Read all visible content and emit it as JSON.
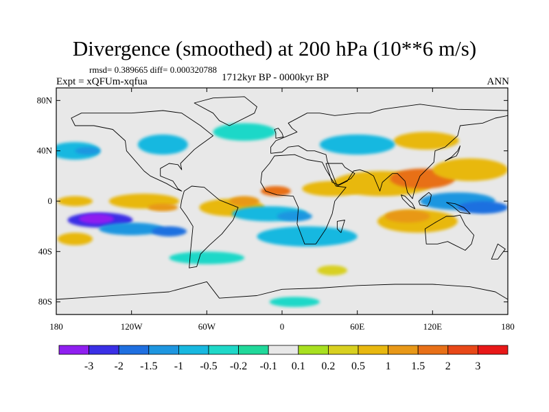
{
  "header": {
    "title": "Divergence (smoothed) at 200 hPa (10**6 m/s)",
    "stats": "rmsd= 0.389665 diff= 0.000320788",
    "period": "1712kyr BP - 0000kyr BP",
    "experiment": "Expt = xQFUm-xqfua",
    "season": "ANN"
  },
  "chart_data": {
    "type": "heatmap",
    "title": "Divergence (smoothed) at 200 hPa (10**6 m/s)",
    "projection": "cylindrical-equidistant",
    "x": {
      "range": [
        -180,
        180
      ],
      "ticks": [
        -180,
        -120,
        -60,
        0,
        60,
        120,
        180
      ],
      "tick_labels": [
        "180",
        "120W",
        "60W",
        "0",
        "60E",
        "120E",
        "180"
      ]
    },
    "y": {
      "range": [
        -90,
        90
      ],
      "ticks": [
        80,
        40,
        0,
        -40,
        -80
      ],
      "tick_labels": [
        "80N",
        "40N",
        "0",
        "40S",
        "80S"
      ]
    },
    "colorbar": {
      "labels": [
        "-3",
        "-2",
        "-1.5",
        "-1",
        "-0.5",
        "-0.2",
        "-0.1",
        "0.1",
        "0.2",
        "0.5",
        "1",
        "1.5",
        "2",
        "3"
      ],
      "levels": [
        -3,
        -2,
        -1.5,
        -1,
        -0.5,
        -0.2,
        -0.1,
        0.1,
        0.2,
        0.5,
        1,
        1.5,
        2,
        3
      ],
      "colors": [
        "#8f1ff0",
        "#3a2fe6",
        "#1f6fe0",
        "#1e96e0",
        "#18b8e0",
        "#1fd8c8",
        "#20d89a",
        "#e8e8e8",
        "#a8e020",
        "#d8d020",
        "#e8b810",
        "#e89818",
        "#e87018",
        "#e84818",
        "#e81818"
      ]
    },
    "background_color": "#e8e8e8",
    "anomaly_regions": [
      {
        "lon": -145,
        "lat": -15,
        "rx": 26,
        "ry": 6,
        "value": -2.5
      },
      {
        "lon": -148,
        "lat": -14,
        "rx": 14,
        "ry": 4,
        "value": -3.2
      },
      {
        "lon": -120,
        "lat": -22,
        "rx": 26,
        "ry": 5,
        "value": -1.2
      },
      {
        "lon": -90,
        "lat": -24,
        "rx": 14,
        "ry": 4,
        "value": -1.6
      },
      {
        "lon": -165,
        "lat": 0,
        "rx": 14,
        "ry": 4,
        "value": 0.6
      },
      {
        "lon": -110,
        "lat": 0,
        "rx": 28,
        "ry": 6,
        "value": 0.8
      },
      {
        "lon": -95,
        "lat": -5,
        "rx": 12,
        "ry": 3,
        "value": 1.3
      },
      {
        "lon": -40,
        "lat": -5,
        "rx": 26,
        "ry": 7,
        "value": 0.8
      },
      {
        "lon": -30,
        "lat": 0,
        "rx": 12,
        "ry": 4,
        "value": 1.3
      },
      {
        "lon": -5,
        "lat": 8,
        "rx": 12,
        "ry": 4,
        "value": 1.6
      },
      {
        "lon": 40,
        "lat": 10,
        "rx": 24,
        "ry": 6,
        "value": 0.7
      },
      {
        "lon": 80,
        "lat": 14,
        "rx": 40,
        "ry": 10,
        "value": 1.0
      },
      {
        "lon": 112,
        "lat": 18,
        "rx": 26,
        "ry": 8,
        "value": 1.6
      },
      {
        "lon": 150,
        "lat": 25,
        "rx": 30,
        "ry": 9,
        "value": 0.8
      },
      {
        "lon": 115,
        "lat": 48,
        "rx": 26,
        "ry": 7,
        "value": 0.6
      },
      {
        "lon": 108,
        "lat": -16,
        "rx": 32,
        "ry": 9,
        "value": 0.8
      },
      {
        "lon": 100,
        "lat": -12,
        "rx": 18,
        "ry": 5,
        "value": 1.5
      },
      {
        "lon": -165,
        "lat": -30,
        "rx": 14,
        "ry": 5,
        "value": 0.6
      },
      {
        "lon": -165,
        "lat": 40,
        "rx": 20,
        "ry": 7,
        "value": -0.6
      },
      {
        "lon": -155,
        "lat": 40,
        "rx": 10,
        "ry": 3,
        "value": -1.2
      },
      {
        "lon": -95,
        "lat": 45,
        "rx": 20,
        "ry": 8,
        "value": -0.7
      },
      {
        "lon": -10,
        "lat": -10,
        "rx": 30,
        "ry": 6,
        "value": -0.7
      },
      {
        "lon": 10,
        "lat": -12,
        "rx": 14,
        "ry": 4,
        "value": -1.3
      },
      {
        "lon": 20,
        "lat": -28,
        "rx": 40,
        "ry": 8,
        "value": -0.5
      },
      {
        "lon": 60,
        "lat": 45,
        "rx": 30,
        "ry": 8,
        "value": -0.5
      },
      {
        "lon": -30,
        "lat": 55,
        "rx": 25,
        "ry": 7,
        "value": -0.4
      },
      {
        "lon": 140,
        "lat": 0,
        "rx": 30,
        "ry": 7,
        "value": -1.0
      },
      {
        "lon": 160,
        "lat": -5,
        "rx": 20,
        "ry": 5,
        "value": -1.8
      },
      {
        "lon": -60,
        "lat": -45,
        "rx": 30,
        "ry": 5,
        "value": -0.4
      },
      {
        "lon": 40,
        "lat": -55,
        "rx": 12,
        "ry": 4,
        "value": 0.3
      },
      {
        "lon": 10,
        "lat": -80,
        "rx": 20,
        "ry": 4,
        "value": -0.3
      }
    ],
    "land_outlines": [
      {
        "name": "north-america",
        "points": [
          [
            -168,
            66
          ],
          [
            -160,
            70
          ],
          [
            -140,
            70
          ],
          [
            -120,
            70
          ],
          [
            -95,
            72
          ],
          [
            -80,
            70
          ],
          [
            -65,
            60
          ],
          [
            -55,
            52
          ],
          [
            -66,
            44
          ],
          [
            -70,
            41
          ],
          [
            -76,
            35
          ],
          [
            -81,
            30
          ],
          [
            -80,
            25
          ],
          [
            -83,
            29
          ],
          [
            -90,
            30
          ],
          [
            -97,
            26
          ],
          [
            -97,
            20
          ],
          [
            -92,
            18
          ],
          [
            -87,
            16
          ],
          [
            -83,
            10
          ],
          [
            -80,
            8
          ],
          [
            -85,
            10
          ],
          [
            -92,
            14
          ],
          [
            -105,
            20
          ],
          [
            -110,
            24
          ],
          [
            -117,
            32
          ],
          [
            -124,
            40
          ],
          [
            -125,
            48
          ],
          [
            -135,
            57
          ],
          [
            -150,
            60
          ],
          [
            -165,
            60
          ],
          [
            -168,
            66
          ]
        ]
      },
      {
        "name": "south-america",
        "points": [
          [
            -78,
            8
          ],
          [
            -72,
            12
          ],
          [
            -62,
            11
          ],
          [
            -50,
            1
          ],
          [
            -35,
            -5
          ],
          [
            -39,
            -15
          ],
          [
            -48,
            -26
          ],
          [
            -58,
            -35
          ],
          [
            -65,
            -42
          ],
          [
            -68,
            -52
          ],
          [
            -74,
            -53
          ],
          [
            -73,
            -40
          ],
          [
            -71,
            -20
          ],
          [
            -76,
            -12
          ],
          [
            -81,
            -5
          ],
          [
            -80,
            1
          ],
          [
            -78,
            8
          ]
        ]
      },
      {
        "name": "greenland",
        "points": [
          [
            -55,
            82
          ],
          [
            -30,
            83
          ],
          [
            -20,
            75
          ],
          [
            -22,
            70
          ],
          [
            -42,
            60
          ],
          [
            -50,
            64
          ],
          [
            -55,
            70
          ],
          [
            -70,
            78
          ],
          [
            -55,
            82
          ]
        ]
      },
      {
        "name": "africa",
        "points": [
          [
            -17,
            15
          ],
          [
            -16,
            23
          ],
          [
            -10,
            30
          ],
          [
            -6,
            36
          ],
          [
            10,
            37
          ],
          [
            20,
            33
          ],
          [
            32,
            31
          ],
          [
            35,
            25
          ],
          [
            43,
            12
          ],
          [
            51,
            11
          ],
          [
            42,
            0
          ],
          [
            40,
            -10
          ],
          [
            35,
            -22
          ],
          [
            27,
            -34
          ],
          [
            18,
            -34
          ],
          [
            12,
            -18
          ],
          [
            13,
            -5
          ],
          [
            9,
            4
          ],
          [
            -4,
            5
          ],
          [
            -13,
            8
          ],
          [
            -17,
            15
          ]
        ]
      },
      {
        "name": "eurasia",
        "points": [
          [
            -9,
            43
          ],
          [
            -9,
            38
          ],
          [
            0,
            39
          ],
          [
            5,
            43
          ],
          [
            13,
            44
          ],
          [
            20,
            40
          ],
          [
            26,
            40
          ],
          [
            35,
            37
          ],
          [
            36,
            32
          ],
          [
            44,
            12
          ],
          [
            52,
            16
          ],
          [
            57,
            24
          ],
          [
            62,
            25
          ],
          [
            68,
            23
          ],
          [
            73,
            20
          ],
          [
            78,
            8
          ],
          [
            80,
            15
          ],
          [
            88,
            22
          ],
          [
            92,
            22
          ],
          [
            98,
            16
          ],
          [
            100,
            7
          ],
          [
            104,
            2
          ],
          [
            106,
            10
          ],
          [
            110,
            20
          ],
          [
            121,
            31
          ],
          [
            122,
            40
          ],
          [
            130,
            43
          ],
          [
            140,
            52
          ],
          [
            142,
            60
          ],
          [
            160,
            62
          ],
          [
            170,
            66
          ],
          [
            180,
            68
          ],
          [
            180,
            72
          ],
          [
            140,
            73
          ],
          [
            110,
            77
          ],
          [
            80,
            73
          ],
          [
            70,
            70
          ],
          [
            60,
            70
          ],
          [
            42,
            68
          ],
          [
            30,
            70
          ],
          [
            20,
            70
          ],
          [
            5,
            62
          ],
          [
            8,
            58
          ],
          [
            12,
            55
          ],
          [
            0,
            50
          ],
          [
            -5,
            48
          ],
          [
            -9,
            43
          ]
        ]
      },
      {
        "name": "arabia-notch",
        "points": [
          [
            35,
            30
          ],
          [
            40,
            15
          ],
          [
            45,
            13
          ],
          [
            55,
            18
          ],
          [
            58,
            22
          ],
          [
            50,
            27
          ],
          [
            48,
            30
          ],
          [
            35,
            30
          ]
        ]
      },
      {
        "name": "australia",
        "points": [
          [
            114,
            -22
          ],
          [
            122,
            -17
          ],
          [
            131,
            -12
          ],
          [
            137,
            -12
          ],
          [
            142,
            -11
          ],
          [
            146,
            -19
          ],
          [
            153,
            -27
          ],
          [
            151,
            -34
          ],
          [
            146,
            -39
          ],
          [
            138,
            -35
          ],
          [
            132,
            -32
          ],
          [
            124,
            -34
          ],
          [
            115,
            -34
          ],
          [
            114,
            -22
          ]
        ]
      },
      {
        "name": "borneo",
        "points": [
          [
            109,
            0
          ],
          [
            112,
            3
          ],
          [
            117,
            7
          ],
          [
            119,
            5
          ],
          [
            118,
            0
          ],
          [
            116,
            -4
          ],
          [
            110,
            -3
          ],
          [
            109,
            0
          ]
        ]
      },
      {
        "name": "sumatra",
        "points": [
          [
            95,
            5
          ],
          [
            98,
            4
          ],
          [
            104,
            -2
          ],
          [
            106,
            -6
          ],
          [
            102,
            -4
          ],
          [
            96,
            2
          ],
          [
            95,
            5
          ]
        ]
      },
      {
        "name": "new-guinea",
        "points": [
          [
            131,
            -1
          ],
          [
            138,
            -2
          ],
          [
            145,
            -5
          ],
          [
            150,
            -10
          ],
          [
            142,
            -9
          ],
          [
            136,
            -4
          ],
          [
            131,
            -1
          ]
        ]
      },
      {
        "name": "japan",
        "points": [
          [
            130,
            32
          ],
          [
            134,
            34
          ],
          [
            139,
            36
          ],
          [
            141,
            40
          ],
          [
            142,
            44
          ],
          [
            140,
            40
          ],
          [
            135,
            35
          ],
          [
            130,
            32
          ]
        ]
      },
      {
        "name": "uk",
        "points": [
          [
            -5,
            50
          ],
          [
            1,
            51
          ],
          [
            0,
            54
          ],
          [
            -3,
            58
          ],
          [
            -6,
            57
          ],
          [
            -5,
            54
          ],
          [
            -5,
            50
          ]
        ]
      },
      {
        "name": "madagascar",
        "points": [
          [
            44,
            -16
          ],
          [
            50,
            -15
          ],
          [
            47,
            -25
          ],
          [
            44,
            -22
          ],
          [
            44,
            -16
          ]
        ]
      },
      {
        "name": "new-zealand",
        "points": [
          [
            172,
            -34
          ],
          [
            178,
            -38
          ],
          [
            172,
            -46
          ],
          [
            167,
            -46
          ],
          [
            172,
            -34
          ]
        ]
      },
      {
        "name": "antarctica",
        "points": [
          [
            -180,
            -78
          ],
          [
            -150,
            -76
          ],
          [
            -120,
            -74
          ],
          [
            -90,
            -72
          ],
          [
            -60,
            -64
          ],
          [
            -50,
            -77
          ],
          [
            -20,
            -75
          ],
          [
            0,
            -70
          ],
          [
            30,
            -69
          ],
          [
            60,
            -67
          ],
          [
            90,
            -66
          ],
          [
            120,
            -66
          ],
          [
            150,
            -68
          ],
          [
            170,
            -72
          ],
          [
            180,
            -78
          ]
        ]
      }
    ]
  }
}
